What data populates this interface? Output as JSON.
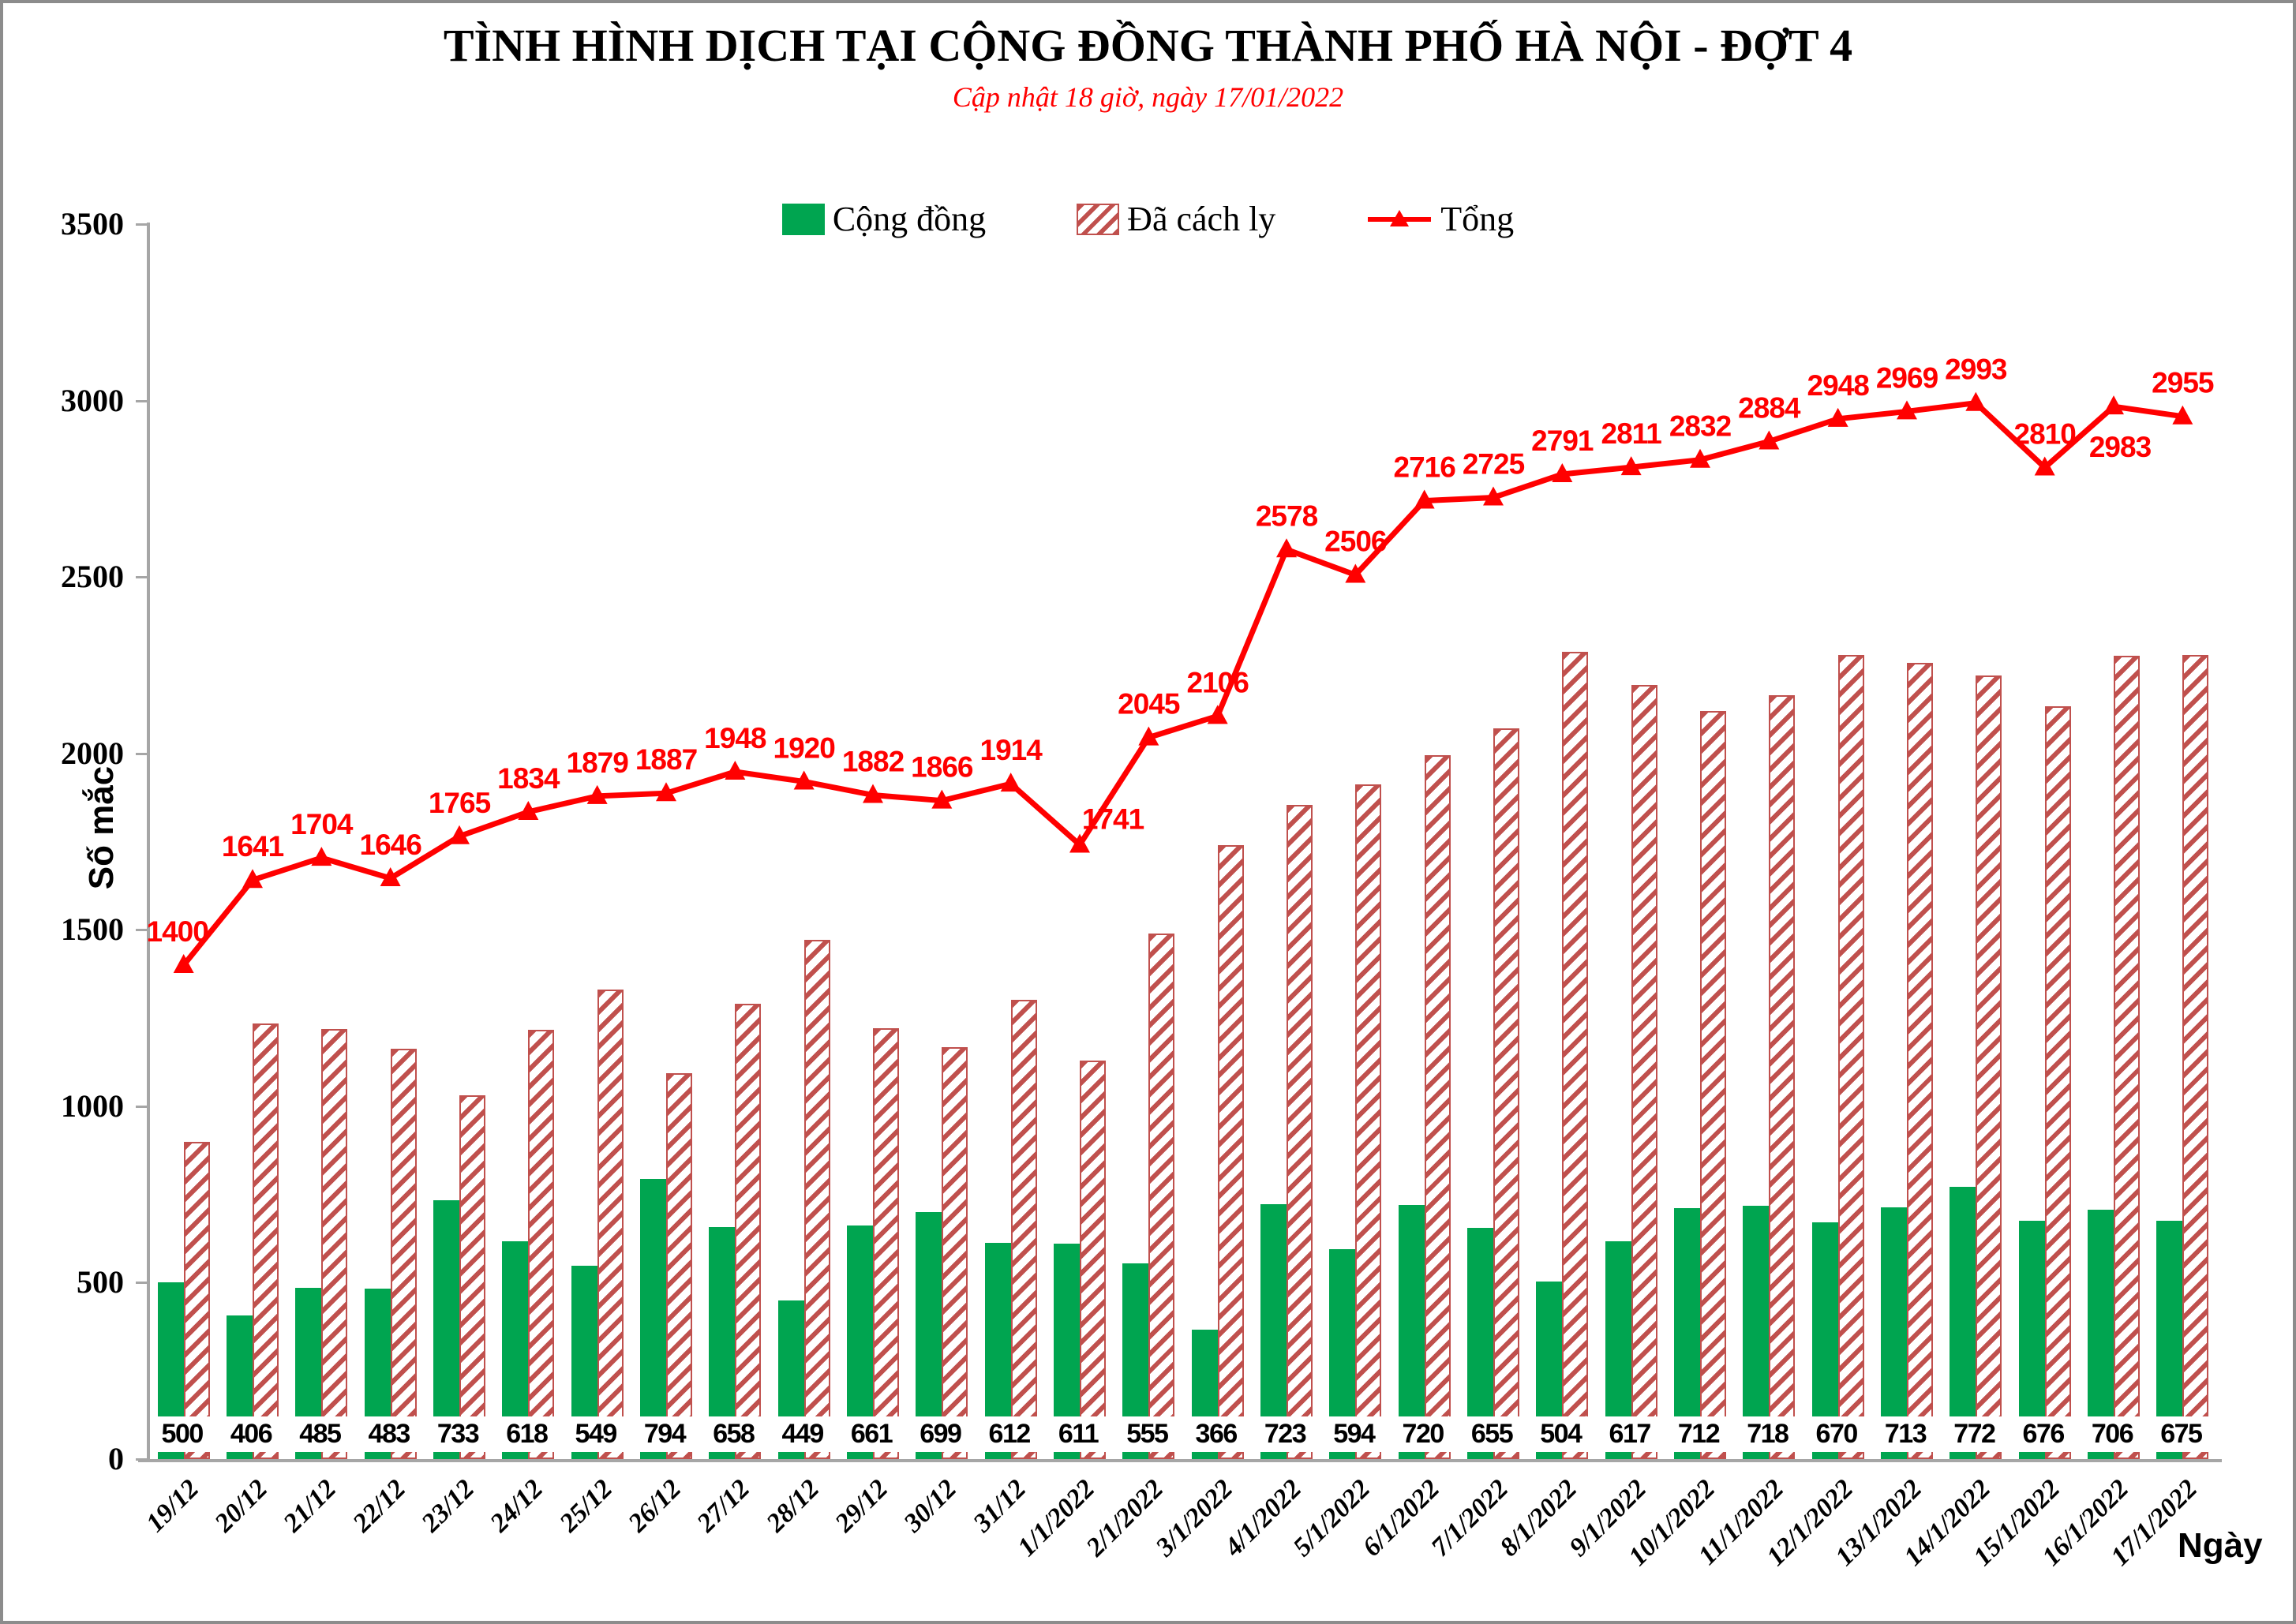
{
  "page": {
    "title": "TÌNH HÌNH DỊCH TẠI CỘNG ĐỒNG THÀNH PHỐ HÀ NỘI - ĐỢT 4",
    "subtitle": "Cập nhật 18 giờ, ngày 17/01/2022"
  },
  "legend": {
    "items": [
      {
        "label": "Cộng đồng",
        "swatch": "green-square"
      },
      {
        "label": "Đã cách ly",
        "swatch": "hatched-square"
      },
      {
        "label": "Tổng",
        "swatch": "red-line-triangle"
      }
    ]
  },
  "colors": {
    "community_green": "#00A550",
    "quarantine_hatch_red": "#C0504D",
    "total_line_red": "#FF0000",
    "subtitle_red": "#FF0000",
    "axis_gray": "#A6A6A6",
    "text_black": "#000000"
  },
  "chart_data": {
    "type": "bar",
    "title": "TÌNH HÌNH DỊCH TẠI CỘNG ĐỒNG THÀNH PHỐ HÀ NỘI - ĐỢT 4",
    "subtitle": "Cập nhật 18 giờ, ngày 17/01/2022",
    "xlabel": "Ngày",
    "ylabel": "Số mắc",
    "ylim": [
      0,
      3500
    ],
    "ytick_step": 500,
    "ytick_labels": [
      "0",
      "500",
      "1000",
      "1500",
      "2000",
      "2500",
      "3000",
      "3500"
    ],
    "grid": false,
    "legend_position": "top",
    "categories": [
      "19/12",
      "20/12",
      "21/12",
      "22/12",
      "23/12",
      "24/12",
      "25/12",
      "26/12",
      "27/12",
      "28/12",
      "29/12",
      "30/12",
      "31/12",
      "1/1/2022",
      "2/1/2022",
      "3/1/2022",
      "4/1/2022",
      "5/1/2022",
      "6/1/2022",
      "7/1/2022",
      "8/1/2022",
      "9/1/2022",
      "10/1/2022",
      "11/1/2022",
      "12/1/2022",
      "13/1/2022",
      "14/1/2022",
      "15/1/2022",
      "16/1/2022",
      "17/1/2022"
    ],
    "series": [
      {
        "name": "Cộng đồng",
        "type": "bar",
        "color": "#00A550",
        "labels_shown": true,
        "values": [
          500,
          406,
          485,
          483,
          733,
          618,
          549,
          794,
          658,
          449,
          661,
          699,
          612,
          611,
          555,
          366,
          723,
          594,
          720,
          655,
          504,
          617,
          712,
          718,
          670,
          713,
          772,
          676,
          706,
          675
        ]
      },
      {
        "name": "Đã cách ly",
        "type": "bar",
        "style": "diagonal-hatch",
        "color": "#C0504D",
        "labels_shown": false,
        "values": [
          900,
          1235,
          1219,
          1163,
          1032,
          1216,
          1330,
          1093,
          1290,
          1471,
          1221,
          1167,
          1302,
          1130,
          1490,
          1740,
          1855,
          1912,
          1996,
          2070,
          2287,
          2194,
          2120,
          2166,
          2278,
          2256,
          2221,
          2134,
          2277,
          2280
        ]
      },
      {
        "name": "Tổng",
        "type": "line",
        "color": "#FF0000",
        "marker": "triangle",
        "labels_shown": true,
        "values": [
          1400,
          1641,
          1704,
          1646,
          1765,
          1834,
          1879,
          1887,
          1948,
          1920,
          1882,
          1866,
          1914,
          1741,
          2045,
          2106,
          2578,
          2506,
          2716,
          2725,
          2791,
          2811,
          2832,
          2884,
          2948,
          2969,
          2993,
          2810,
          2983,
          2955
        ]
      }
    ]
  }
}
